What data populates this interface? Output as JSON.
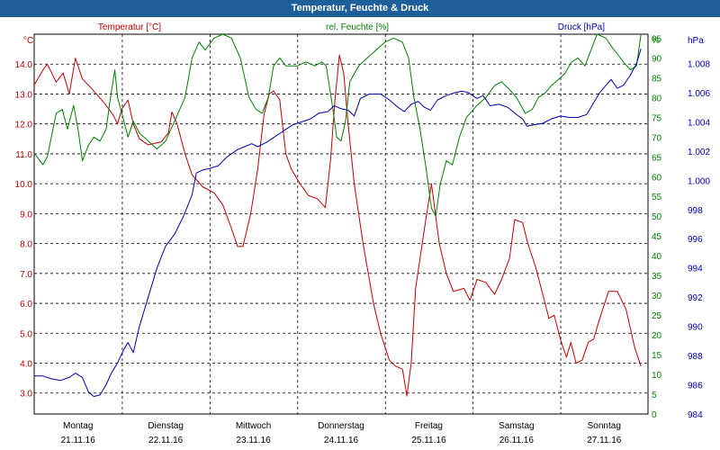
{
  "window": {
    "title": "Temperatur, Feuchte & Druck"
  },
  "chart_data": {
    "type": "line",
    "title": "Temperatur, Feuchte & Druck",
    "x_categories": [
      {
        "day": "Montag",
        "date": "21.11.16"
      },
      {
        "day": "Dienstag",
        "date": "22.11.16"
      },
      {
        "day": "Mittwoch",
        "date": "23.11.16"
      },
      {
        "day": "Donnerstag",
        "date": "24.11.16"
      },
      {
        "day": "Freitag",
        "date": "25.11.16"
      },
      {
        "day": "Samstag",
        "date": "26.11.16"
      },
      {
        "day": "Sonntag",
        "date": "27.11.16"
      }
    ],
    "x_range": [
      0,
      7
    ],
    "axes": {
      "temperature": {
        "label": "Temperatur [°C]",
        "unit": "°C",
        "ylim": [
          2.3,
          15.0
        ],
        "ticks": [
          "3.0",
          "4.0",
          "5.0",
          "6.0",
          "7.0",
          "8.0",
          "9.0",
          "10.0",
          "11.0",
          "12.0",
          "13.0",
          "14.0"
        ],
        "tick_values": [
          3,
          4,
          5,
          6,
          7,
          8,
          9,
          10,
          11,
          12,
          13,
          14
        ],
        "color": "#c00000"
      },
      "humidity": {
        "label": "rel. Feuchte [%]",
        "unit": "%",
        "ylim": [
          0,
          96
        ],
        "ticks": [
          "0",
          "5",
          "10",
          "15",
          "20",
          "25",
          "30",
          "35",
          "40",
          "45",
          "50",
          "55",
          "60",
          "65",
          "70",
          "75",
          "80",
          "85",
          "90",
          "95"
        ],
        "tick_values": [
          0,
          5,
          10,
          15,
          20,
          25,
          30,
          35,
          40,
          45,
          50,
          55,
          60,
          65,
          70,
          75,
          80,
          85,
          90,
          95
        ],
        "color": "#008000"
      },
      "pressure": {
        "label": "Druck [hPa]",
        "unit": "hPa",
        "ylim": [
          984,
          1010
        ],
        "ticks": [
          "984",
          "986",
          "988",
          "990",
          "992",
          "994",
          "996",
          "998",
          "1.000",
          "1.002",
          "1.004",
          "1.006",
          "1.008"
        ],
        "tick_values": [
          984,
          986,
          988,
          990,
          992,
          994,
          996,
          998,
          1000,
          1002,
          1004,
          1006,
          1008
        ],
        "color": "#0000b0"
      }
    },
    "series": [
      {
        "name": "Temperatur [°C]",
        "axis": "temperature",
        "color": "#c00000",
        "points": [
          [
            0,
            13.3
          ],
          [
            0.1,
            13.8
          ],
          [
            0.15,
            14.0
          ],
          [
            0.25,
            13.4
          ],
          [
            0.33,
            13.7
          ],
          [
            0.4,
            13.0
          ],
          [
            0.47,
            14.2
          ],
          [
            0.55,
            13.5
          ],
          [
            0.65,
            13.2
          ],
          [
            0.8,
            12.7
          ],
          [
            0.9,
            12.3
          ],
          [
            0.95,
            12.0
          ],
          [
            1.0,
            12.5
          ],
          [
            1.07,
            12.8
          ],
          [
            1.13,
            12.0
          ],
          [
            1.2,
            11.5
          ],
          [
            1.3,
            11.3
          ],
          [
            1.45,
            11.4
          ],
          [
            1.53,
            11.7
          ],
          [
            1.57,
            12.4
          ],
          [
            1.63,
            12.0
          ],
          [
            1.72,
            11.0
          ],
          [
            1.8,
            10.3
          ],
          [
            1.92,
            9.9
          ],
          [
            2.05,
            9.7
          ],
          [
            2.15,
            9.3
          ],
          [
            2.25,
            8.5
          ],
          [
            2.32,
            7.9
          ],
          [
            2.38,
            7.9
          ],
          [
            2.47,
            9.0
          ],
          [
            2.55,
            10.5
          ],
          [
            2.62,
            12.3
          ],
          [
            2.68,
            13.0
          ],
          [
            2.73,
            13.1
          ],
          [
            2.8,
            12.8
          ],
          [
            2.87,
            11.0
          ],
          [
            2.93,
            10.5
          ],
          [
            3.03,
            10.0
          ],
          [
            3.13,
            9.6
          ],
          [
            3.23,
            9.5
          ],
          [
            3.32,
            9.2
          ],
          [
            3.38,
            10.8
          ],
          [
            3.43,
            12.8
          ],
          [
            3.48,
            14.3
          ],
          [
            3.53,
            13.7
          ],
          [
            3.58,
            12.0
          ],
          [
            3.65,
            10.0
          ],
          [
            3.75,
            8.0
          ],
          [
            3.87,
            6.0
          ],
          [
            3.95,
            5.0
          ],
          [
            4.05,
            4.1
          ],
          [
            4.12,
            3.9
          ],
          [
            4.2,
            3.8
          ],
          [
            4.25,
            2.9
          ],
          [
            4.3,
            4.0
          ],
          [
            4.35,
            6.5
          ],
          [
            4.45,
            8.5
          ],
          [
            4.53,
            10.0
          ],
          [
            4.62,
            8.0
          ],
          [
            4.7,
            7.0
          ],
          [
            4.78,
            6.4
          ],
          [
            4.9,
            6.5
          ],
          [
            4.97,
            6.1
          ],
          [
            5.05,
            6.8
          ],
          [
            5.15,
            6.7
          ],
          [
            5.25,
            6.3
          ],
          [
            5.33,
            6.8
          ],
          [
            5.42,
            7.5
          ],
          [
            5.48,
            8.8
          ],
          [
            5.57,
            8.7
          ],
          [
            5.63,
            8.0
          ],
          [
            5.72,
            7.2
          ],
          [
            5.8,
            6.3
          ],
          [
            5.87,
            5.5
          ],
          [
            5.93,
            5.6
          ],
          [
            6.0,
            4.8
          ],
          [
            6.07,
            4.2
          ],
          [
            6.12,
            4.7
          ],
          [
            6.18,
            4.0
          ],
          [
            6.25,
            4.1
          ],
          [
            6.32,
            4.7
          ],
          [
            6.38,
            4.8
          ],
          [
            6.45,
            5.5
          ],
          [
            6.55,
            6.4
          ],
          [
            6.65,
            6.4
          ],
          [
            6.75,
            5.8
          ],
          [
            6.85,
            4.5
          ],
          [
            6.92,
            3.9
          ]
        ]
      },
      {
        "name": "rel. Feuchte [%]",
        "axis": "humidity",
        "color": "#008000",
        "points": [
          [
            0,
            66
          ],
          [
            0.1,
            63
          ],
          [
            0.15,
            65
          ],
          [
            0.25,
            76
          ],
          [
            0.32,
            77
          ],
          [
            0.38,
            72
          ],
          [
            0.45,
            78
          ],
          [
            0.5,
            72
          ],
          [
            0.55,
            64
          ],
          [
            0.62,
            68
          ],
          [
            0.68,
            70
          ],
          [
            0.75,
            69
          ],
          [
            0.82,
            72
          ],
          [
            0.87,
            80
          ],
          [
            0.92,
            87
          ],
          [
            0.95,
            80
          ],
          [
            1.0,
            76
          ],
          [
            1.07,
            70
          ],
          [
            1.13,
            74
          ],
          [
            1.2,
            71
          ],
          [
            1.3,
            69
          ],
          [
            1.4,
            67
          ],
          [
            1.5,
            69
          ],
          [
            1.6,
            74
          ],
          [
            1.72,
            80
          ],
          [
            1.8,
            90
          ],
          [
            1.88,
            94
          ],
          [
            1.95,
            92
          ],
          [
            2.05,
            95
          ],
          [
            2.15,
            96
          ],
          [
            2.25,
            95
          ],
          [
            2.35,
            90
          ],
          [
            2.45,
            80
          ],
          [
            2.53,
            77
          ],
          [
            2.6,
            76
          ],
          [
            2.67,
            80
          ],
          [
            2.73,
            88
          ],
          [
            2.8,
            90
          ],
          [
            2.87,
            88
          ],
          [
            3.0,
            88
          ],
          [
            3.1,
            89
          ],
          [
            3.2,
            88
          ],
          [
            3.28,
            89
          ],
          [
            3.33,
            88
          ],
          [
            3.4,
            78
          ],
          [
            3.45,
            70
          ],
          [
            3.5,
            69
          ],
          [
            3.55,
            74
          ],
          [
            3.6,
            84
          ],
          [
            3.7,
            88
          ],
          [
            3.8,
            90
          ],
          [
            3.9,
            92
          ],
          [
            4.0,
            94
          ],
          [
            4.1,
            95
          ],
          [
            4.2,
            94
          ],
          [
            4.27,
            90
          ],
          [
            4.33,
            80
          ],
          [
            4.4,
            72
          ],
          [
            4.47,
            62
          ],
          [
            4.53,
            52
          ],
          [
            4.58,
            50
          ],
          [
            4.63,
            58
          ],
          [
            4.7,
            64
          ],
          [
            4.77,
            63
          ],
          [
            4.85,
            70
          ],
          [
            4.93,
            75
          ],
          [
            5.05,
            78
          ],
          [
            5.15,
            80
          ],
          [
            5.25,
            83
          ],
          [
            5.33,
            84
          ],
          [
            5.42,
            82
          ],
          [
            5.5,
            80
          ],
          [
            5.6,
            76
          ],
          [
            5.68,
            77
          ],
          [
            5.75,
            80
          ],
          [
            5.82,
            81
          ],
          [
            5.9,
            83
          ],
          [
            6.0,
            85
          ],
          [
            6.05,
            86
          ],
          [
            6.13,
            89
          ],
          [
            6.2,
            90
          ],
          [
            6.28,
            88
          ],
          [
            6.35,
            92
          ],
          [
            6.42,
            96
          ],
          [
            6.52,
            95
          ],
          [
            6.58,
            93
          ],
          [
            6.65,
            91
          ],
          [
            6.72,
            89
          ],
          [
            6.8,
            87
          ],
          [
            6.87,
            88
          ],
          [
            6.92,
            96
          ]
        ]
      },
      {
        "name": "Druck [hPa]",
        "axis": "pressure",
        "color": "#0000b0",
        "points": [
          [
            0,
            986.6
          ],
          [
            0.1,
            986.6
          ],
          [
            0.2,
            986.4
          ],
          [
            0.3,
            986.3
          ],
          [
            0.4,
            986.5
          ],
          [
            0.47,
            986.8
          ],
          [
            0.55,
            986.5
          ],
          [
            0.62,
            985.5
          ],
          [
            0.68,
            985.2
          ],
          [
            0.75,
            985.3
          ],
          [
            0.82,
            986.0
          ],
          [
            0.88,
            986.8
          ],
          [
            0.95,
            987.5
          ],
          [
            1.02,
            988.4
          ],
          [
            1.07,
            988.9
          ],
          [
            1.13,
            988.2
          ],
          [
            1.2,
            990.0
          ],
          [
            1.3,
            992.0
          ],
          [
            1.4,
            994.0
          ],
          [
            1.5,
            995.5
          ],
          [
            1.6,
            996.3
          ],
          [
            1.7,
            997.5
          ],
          [
            1.8,
            999.0
          ],
          [
            1.85,
            1000.5
          ],
          [
            1.92,
            1000.7
          ],
          [
            2.0,
            1000.8
          ],
          [
            2.1,
            1001.0
          ],
          [
            2.2,
            1001.6
          ],
          [
            2.32,
            1002.1
          ],
          [
            2.4,
            1002.3
          ],
          [
            2.48,
            1002.5
          ],
          [
            2.55,
            1002.3
          ],
          [
            2.65,
            1002.6
          ],
          [
            2.75,
            1003.0
          ],
          [
            2.85,
            1003.4
          ],
          [
            2.95,
            1003.8
          ],
          [
            3.05,
            1004.0
          ],
          [
            3.15,
            1004.2
          ],
          [
            3.25,
            1004.6
          ],
          [
            3.35,
            1004.7
          ],
          [
            3.42,
            1005.1
          ],
          [
            3.5,
            1004.9
          ],
          [
            3.58,
            1004.8
          ],
          [
            3.65,
            1004.4
          ],
          [
            3.72,
            1005.6
          ],
          [
            3.82,
            1005.9
          ],
          [
            3.95,
            1005.9
          ],
          [
            4.05,
            1005.5
          ],
          [
            4.15,
            1005.0
          ],
          [
            4.22,
            1004.7
          ],
          [
            4.3,
            1005.2
          ],
          [
            4.38,
            1005.4
          ],
          [
            4.45,
            1005.0
          ],
          [
            4.52,
            1004.8
          ],
          [
            4.6,
            1005.5
          ],
          [
            4.7,
            1005.8
          ],
          [
            4.8,
            1006.0
          ],
          [
            4.88,
            1006.1
          ],
          [
            4.95,
            1006.0
          ],
          [
            5.05,
            1005.6
          ],
          [
            5.12,
            1005.8
          ],
          [
            5.2,
            1005.1
          ],
          [
            5.3,
            1005.2
          ],
          [
            5.4,
            1005.0
          ],
          [
            5.5,
            1004.5
          ],
          [
            5.57,
            1004.2
          ],
          [
            5.62,
            1003.7
          ],
          [
            5.7,
            1003.8
          ],
          [
            5.8,
            1003.9
          ],
          [
            5.9,
            1004.2
          ],
          [
            6.0,
            1004.4
          ],
          [
            6.1,
            1004.3
          ],
          [
            6.2,
            1004.3
          ],
          [
            6.3,
            1004.5
          ],
          [
            6.38,
            1005.3
          ],
          [
            6.45,
            1006.0
          ],
          [
            6.52,
            1006.5
          ],
          [
            6.58,
            1006.9
          ],
          [
            6.65,
            1006.3
          ],
          [
            6.72,
            1006.5
          ],
          [
            6.8,
            1007.2
          ],
          [
            6.87,
            1008.0
          ],
          [
            6.92,
            1009.0
          ]
        ]
      }
    ]
  }
}
